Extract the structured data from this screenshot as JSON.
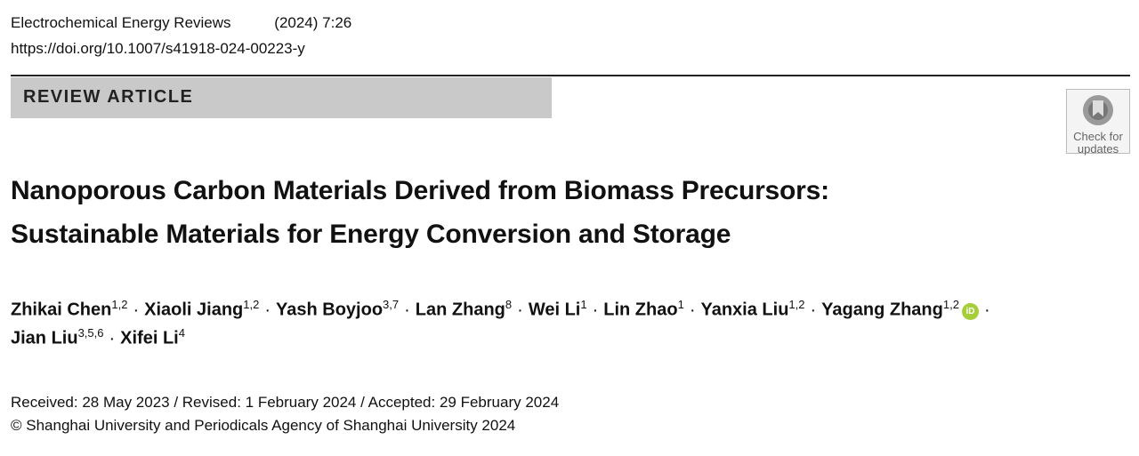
{
  "header": {
    "journal": "Electrochemical Energy Reviews",
    "citation": "(2024) 7:26",
    "doi": "https://doi.org/10.1007/s41918-024-00223-y"
  },
  "article_type": "REVIEW ARTICLE",
  "badge": {
    "line1": "Check for",
    "line2": "updates"
  },
  "title_lines": [
    "Nanoporous Carbon Materials Derived from Biomass Precursors:",
    "Sustainable Materials for Energy Conversion and Storage"
  ],
  "author_separator": "·",
  "orcid_label": "iD",
  "authors": [
    {
      "name": "Zhikai Chen",
      "affil": "1,2"
    },
    {
      "name": "Xiaoli Jiang",
      "affil": "1,2"
    },
    {
      "name": "Yash Boyjoo",
      "affil": "3,7"
    },
    {
      "name": "Lan Zhang",
      "affil": "8"
    },
    {
      "name": "Wei Li",
      "affil": "1"
    },
    {
      "name": "Lin Zhao",
      "affil": "1"
    },
    {
      "name": "Yanxia Liu",
      "affil": "1,2"
    },
    {
      "name": "Yagang Zhang",
      "affil": "1,2",
      "orcid": true
    },
    {
      "name": "Jian Liu",
      "affil": "3,5,6"
    },
    {
      "name": "Xifei Li",
      "affil": "4"
    }
  ],
  "dates": "Received: 28 May 2023 / Revised: 1 February 2024 / Accepted: 29 February 2024",
  "copyright": "© Shanghai University and Periodicals Agency of Shanghai University 2024"
}
